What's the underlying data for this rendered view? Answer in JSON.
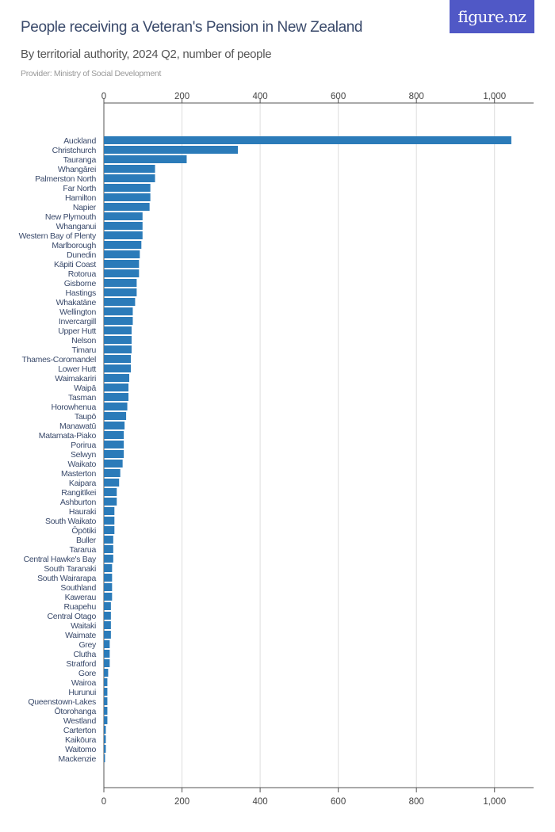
{
  "header": {
    "title": "People receiving a Veteran's Pension in New Zealand",
    "subtitle": "By territorial authority, 2024 Q2, number of people",
    "provider": "Provider: Ministry of Social Development",
    "logo": "figure.nz"
  },
  "colors": {
    "bar": "#2b7bb9",
    "logo_bg": "#5058c6",
    "title": "#3a4a6b"
  },
  "chart_data": {
    "type": "bar",
    "orientation": "horizontal",
    "title": "People receiving a Veteran's Pension in New Zealand",
    "subtitle": "By territorial authority, 2024 Q2, number of people",
    "xlim": [
      0,
      1100
    ],
    "x_ticks": [
      0,
      200,
      400,
      600,
      800,
      1000
    ],
    "x_tick_labels": [
      "0",
      "200",
      "400",
      "600",
      "800",
      "1,000"
    ],
    "grid": true,
    "categories": [
      "Auckland",
      "Christchurch",
      "Tauranga",
      "Whangārei",
      "Palmerston North",
      "Far North",
      "Hamilton",
      "Napier",
      "New Plymouth",
      "Whanganui",
      "Western Bay of Plenty",
      "Marlborough",
      "Dunedin",
      "Kāpiti Coast",
      "Rotorua",
      "Gisborne",
      "Hastings",
      "Whakatāne",
      "Wellington",
      "Invercargill",
      "Upper Hutt",
      "Nelson",
      "Timaru",
      "Thames-Coromandel",
      "Lower Hutt",
      "Waimakariri",
      "Waipā",
      "Tasman",
      "Horowhenua",
      "Taupō",
      "Manawatū",
      "Matamata-Piako",
      "Porirua",
      "Selwyn",
      "Waikato",
      "Masterton",
      "Kaipara",
      "Rangitīkei",
      "Ashburton",
      "Hauraki",
      "South Waikato",
      "Ōpōtiki",
      "Buller",
      "Tararua",
      "Central Hawke's Bay",
      "South Taranaki",
      "South Wairarapa",
      "Southland",
      "Kawerau",
      "Ruapehu",
      "Central Otago",
      "Waitaki",
      "Waimate",
      "Grey",
      "Clutha",
      "Stratford",
      "Gore",
      "Wairoa",
      "Hurunui",
      "Queenstown-Lakes",
      "Ōtorohanga",
      "Westland",
      "Carterton",
      "Kaikōura",
      "Waitomo",
      "Mackenzie"
    ],
    "values": [
      1043,
      343,
      212,
      131,
      131,
      119,
      119,
      117,
      99,
      99,
      99,
      96,
      92,
      90,
      90,
      84,
      84,
      80,
      74,
      74,
      71,
      71,
      71,
      69,
      69,
      65,
      63,
      63,
      60,
      57,
      53,
      51,
      51,
      51,
      48,
      42,
      39,
      33,
      33,
      27,
      27,
      27,
      24,
      24,
      24,
      21,
      21,
      21,
      21,
      18,
      18,
      18,
      18,
      15,
      15,
      15,
      11,
      9,
      9,
      9,
      9,
      9,
      5,
      5,
      5,
      3
    ]
  }
}
